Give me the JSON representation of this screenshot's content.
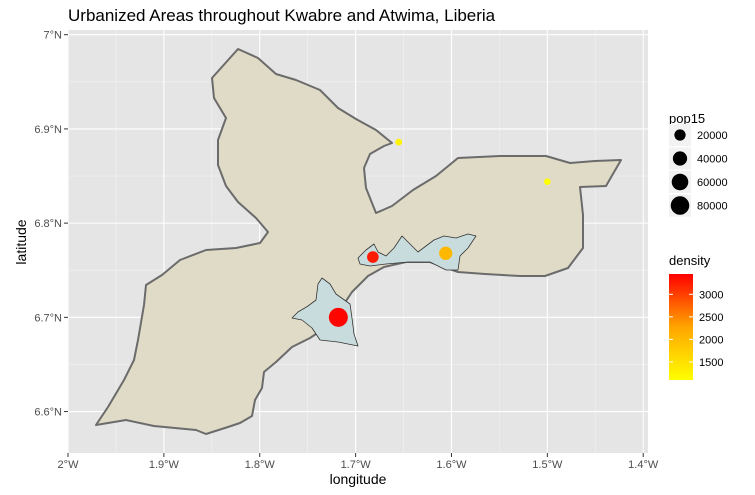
{
  "chart_data": {
    "type": "map",
    "title": "Urbanized Areas throughout Kwabre and Atwima, Liberia",
    "xlabel": "longitude",
    "ylabel": "latitude",
    "xlim": [
      -2.0,
      -1.395
    ],
    "ylim": [
      6.556,
      7.005
    ],
    "x_ticks": [
      -2.0,
      -1.9,
      -1.8,
      -1.7,
      -1.6,
      -1.5,
      -1.4
    ],
    "x_tick_labels": [
      "2°W",
      "1.9°W",
      "1.8°W",
      "1.7°W",
      "1.6°W",
      "1.5°W",
      "1.4°W"
    ],
    "y_ticks": [
      6.6,
      6.7,
      6.8,
      6.9,
      7.0
    ],
    "y_tick_labels": [
      "6.6°N",
      "6.7°N",
      "6.8°N",
      "6.9°N",
      "7°N"
    ],
    "grid": true,
    "colors": {
      "panel_background": "#e5e5e5",
      "grid": "#ffffff",
      "region_fill": "#e0dbc7",
      "region_stroke": "#6b6b6b",
      "urban_fill": "#c9dcdd",
      "urban_stroke": "#333333",
      "density_low": "#ffff00",
      "density_high": "#ff0000"
    },
    "points": [
      {
        "x": -1.718,
        "y": 6.7,
        "pop15": 85000,
        "density": 3400
      },
      {
        "x": -1.682,
        "y": 6.764,
        "pop15": 22000,
        "density": 3200
      },
      {
        "x": -1.606,
        "y": 6.768,
        "pop15": 32000,
        "density": 1750
      },
      {
        "x": -1.655,
        "y": 6.886,
        "pop15": 3000,
        "density": 1200
      },
      {
        "x": -1.5,
        "y": 6.844,
        "pop15": 2500,
        "density": 1100
      }
    ],
    "legend_size": {
      "title": "pop15",
      "breaks": [
        20000,
        40000,
        60000,
        80000
      ],
      "labels": [
        "20000",
        "40000",
        "60000",
        "80000"
      ]
    },
    "legend_color": {
      "title": "density",
      "min": 1100,
      "max": 3450,
      "breaks": [
        1500,
        2000,
        2500,
        3000
      ],
      "labels": [
        "1500",
        "2000",
        "2500",
        "3000"
      ]
    }
  }
}
